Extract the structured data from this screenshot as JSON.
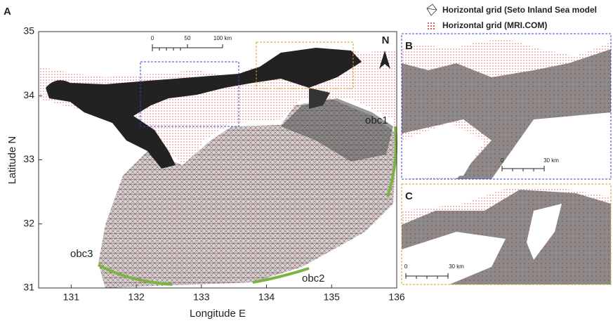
{
  "panels": {
    "a": {
      "label": "A",
      "xlabel": "Longitude E",
      "ylabel": "Latitude N",
      "xlim": [
        130.5,
        136
      ],
      "ylim": [
        31,
        35
      ],
      "xticks": [
        131,
        132,
        133,
        134,
        135,
        136
      ],
      "yticks": [
        31,
        32,
        33,
        34,
        35
      ],
      "north": "N",
      "scale_bar": [
        "0",
        "50",
        "100 km"
      ],
      "annotations": [
        "obc1",
        "obc2",
        "obc3"
      ]
    },
    "b": {
      "label": "B",
      "scale_bar": [
        "0",
        "30 km"
      ]
    },
    "c": {
      "label": "C",
      "scale_bar": [
        "0",
        "30 km"
      ]
    }
  },
  "legend": [
    "Horizontal grid (Seto Inland Sea model",
    "Horizontal grid (MRI.COM)"
  ]
}
